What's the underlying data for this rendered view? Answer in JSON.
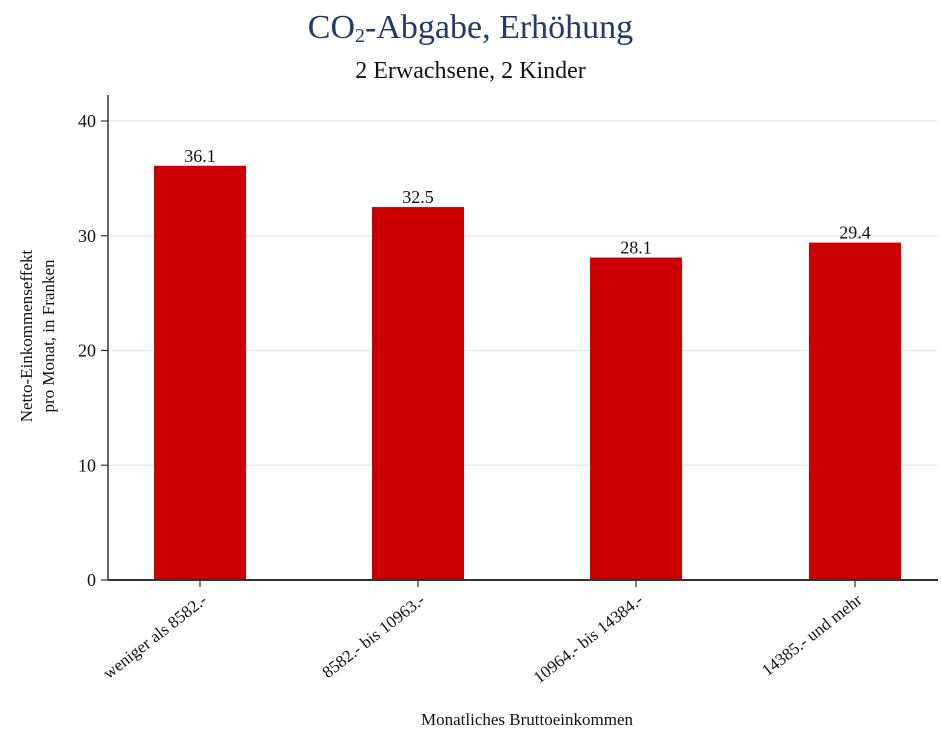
{
  "chart_data": {
    "type": "bar",
    "title_main": "CO",
    "title_sub": "2",
    "title_rest": "-Abgabe, Erhöhung",
    "subtitle": "2 Erwachsene, 2 Kinder",
    "xlabel": "Monatliches Bruttoeinkommen",
    "ylabel_line1": "Netto-Einkommenseffekt",
    "ylabel_line2": "pro Monat, in Franken",
    "categories": [
      "weniger als 8582.-",
      "8582.- bis 10963.-",
      "10964.- bis 14384.-",
      "14385.- und mehr"
    ],
    "values": [
      36.1,
      32.5,
      28.1,
      29.4
    ],
    "value_labels": [
      "36.1",
      "32.5",
      "28.1",
      "29.4"
    ],
    "yticks": [
      0,
      10,
      20,
      30,
      40
    ],
    "ylim": [
      0,
      42
    ],
    "grid": true,
    "bar_color": "#cc0000",
    "title_color": "#1f3a6b"
  }
}
